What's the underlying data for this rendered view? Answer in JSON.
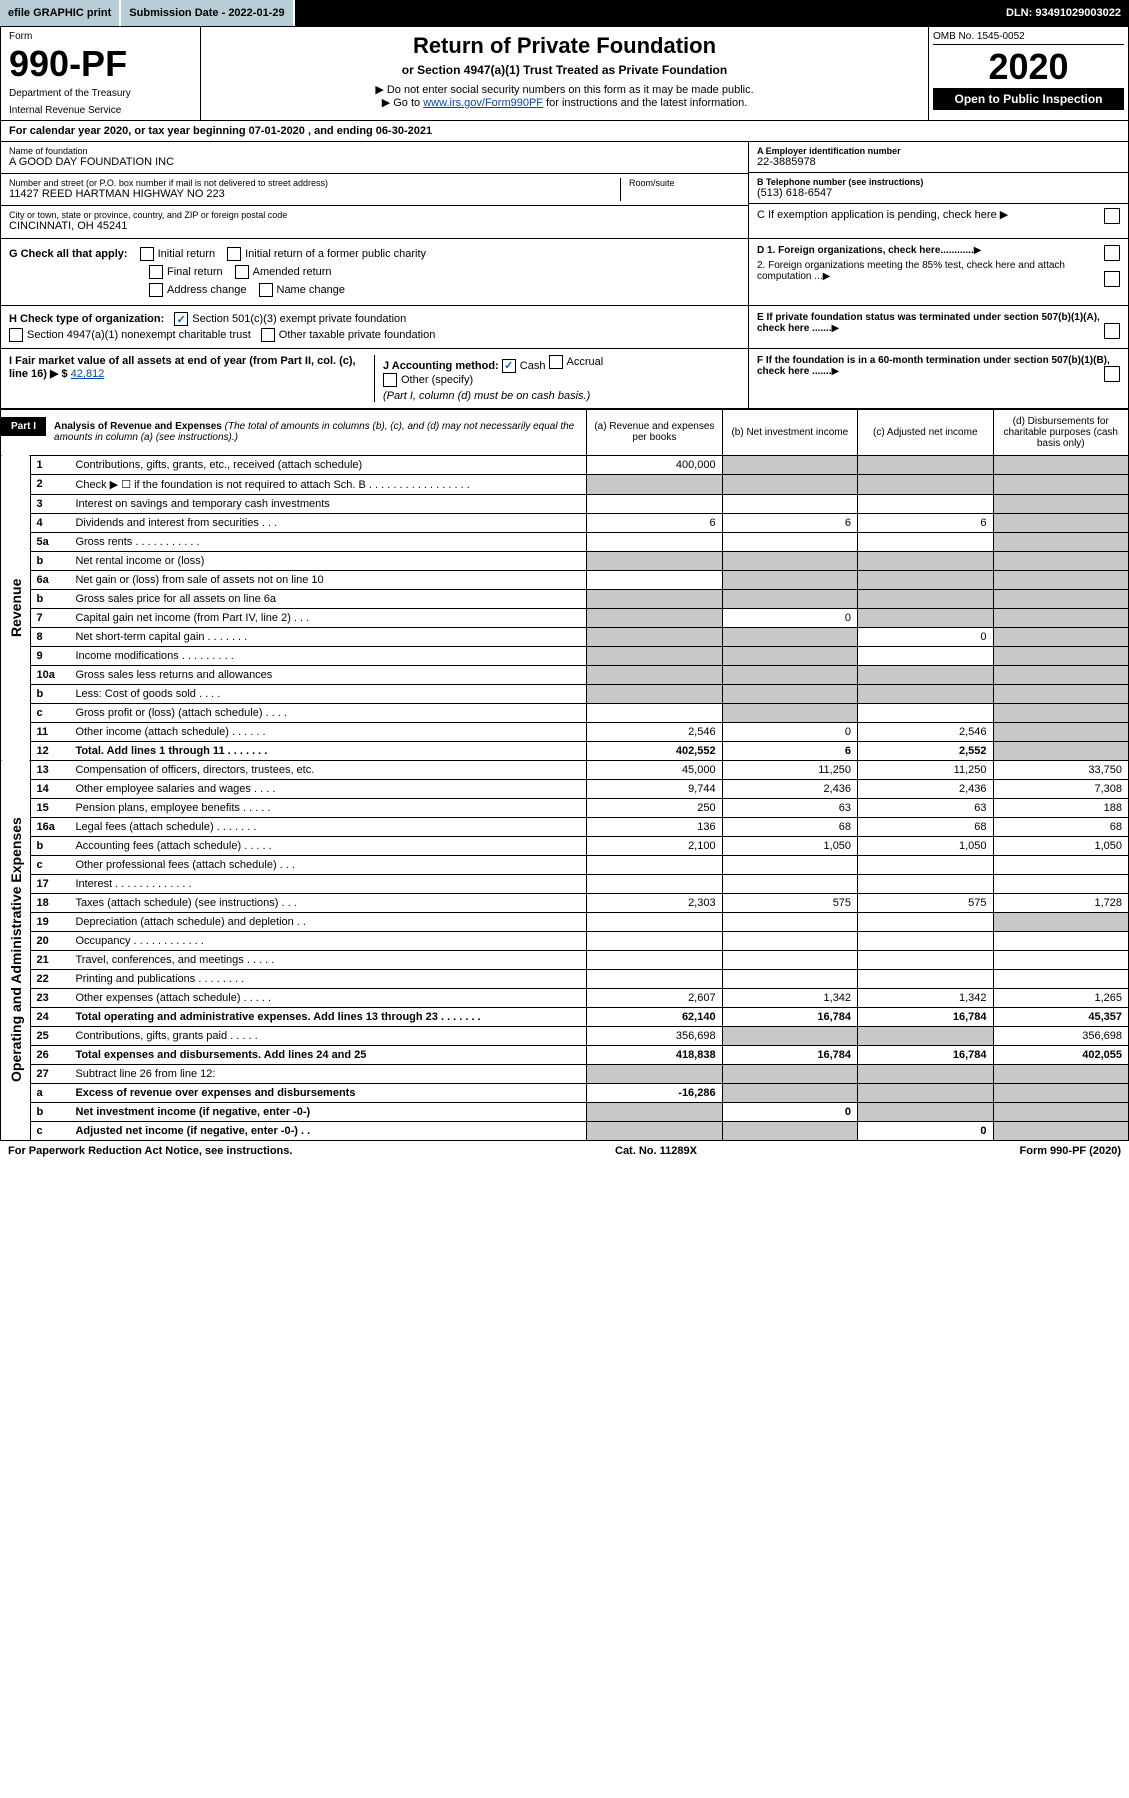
{
  "topbar": {
    "efile": "efile GRAPHIC print",
    "submission": "Submission Date - 2022-01-29",
    "dln": "DLN: 93491029003022"
  },
  "header": {
    "form_label": "Form",
    "form_num": "990-PF",
    "dept": "Department of the Treasury",
    "irs": "Internal Revenue Service",
    "title": "Return of Private Foundation",
    "subtitle": "or Section 4947(a)(1) Trust Treated as Private Foundation",
    "note1": "▶ Do not enter social security numbers on this form as it may be made public.",
    "note2_pre": "▶ Go to ",
    "note2_link": "www.irs.gov/Form990PF",
    "note2_post": " for instructions and the latest information.",
    "omb": "OMB No. 1545-0052",
    "year": "2020",
    "inspection": "Open to Public Inspection"
  },
  "taxyear": "For calendar year 2020, or tax year beginning 07-01-2020                                , and ending 06-30-2021",
  "org": {
    "name_label": "Name of foundation",
    "name": "A GOOD DAY FOUNDATION INC",
    "addr_label": "Number and street (or P.O. box number if mail is not delivered to street address)",
    "addr": "11427 REED HARTMAN HIGHWAY NO 223",
    "room_label": "Room/suite",
    "city_label": "City or town, state or province, country, and ZIP or foreign postal code",
    "city": "CINCINNATI, OH  45241",
    "ein_label": "A Employer identification number",
    "ein": "22-3885978",
    "phone_label": "B Telephone number (see instructions)",
    "phone": "(513) 618-6547",
    "c_label": "C If exemption application is pending, check here"
  },
  "checks": {
    "g_label": "G Check all that apply:",
    "g_items": [
      "Initial return",
      "Initial return of a former public charity",
      "Final return",
      "Amended return",
      "Address change",
      "Name change"
    ],
    "h_label": "H Check type of organization:",
    "h1": "Section 501(c)(3) exempt private foundation",
    "h2": "Section 4947(a)(1) nonexempt charitable trust",
    "h3": "Other taxable private foundation",
    "i_label": "I Fair market value of all assets at end of year (from Part II, col. (c), line 16) ▶ $",
    "i_val": "42,812",
    "j_label": "J Accounting method:",
    "j_cash": "Cash",
    "j_accrual": "Accrual",
    "j_other": "Other (specify)",
    "j_note": "(Part I, column (d) must be on cash basis.)",
    "d1": "D 1. Foreign organizations, check here............",
    "d2": "2. Foreign organizations meeting the 85% test, check here and attach computation ...",
    "e": "E If private foundation status was terminated under section 507(b)(1)(A), check here .......",
    "f": "F If the foundation is in a 60-month termination under section 507(b)(1)(B), check here ......."
  },
  "part1": {
    "label": "Part I",
    "title": "Analysis of Revenue and Expenses",
    "subtitle": "(The total of amounts in columns (b), (c), and (d) may not necessarily equal the amounts in column (a) (see instructions).)",
    "col_a": "(a) Revenue and expenses per books",
    "col_b": "(b) Net investment income",
    "col_c": "(c) Adjusted net income",
    "col_d": "(d) Disbursements for charitable purposes (cash basis only)"
  },
  "revenue_label": "Revenue",
  "expense_label": "Operating and Administrative Expenses",
  "rows": [
    {
      "num": "1",
      "desc": "Contributions, gifts, grants, etc., received (attach schedule)",
      "a": "400,000",
      "b": "",
      "c": "",
      "d": "",
      "shade_b": true,
      "shade_c": true,
      "shade_d": true
    },
    {
      "num": "2",
      "desc": "Check ▶ ☐ if the foundation is not required to attach Sch. B  . . . . . . . . . . . . . . . . .",
      "a": "",
      "b": "",
      "c": "",
      "d": "",
      "shade_a": true,
      "shade_b": true,
      "shade_c": true,
      "shade_d": true
    },
    {
      "num": "3",
      "desc": "Interest on savings and temporary cash investments",
      "a": "",
      "b": "",
      "c": "",
      "d": "",
      "shade_d": true
    },
    {
      "num": "4",
      "desc": "Dividends and interest from securities   .  .  .",
      "a": "6",
      "b": "6",
      "c": "6",
      "d": "",
      "shade_d": true
    },
    {
      "num": "5a",
      "desc": "Gross rents   .  .  .  .  .  .  .  .  .  .  .",
      "a": "",
      "b": "",
      "c": "",
      "d": "",
      "shade_d": true
    },
    {
      "num": "b",
      "desc": "Net rental income or (loss)",
      "a": "",
      "b": "",
      "c": "",
      "d": "",
      "shade_a": true,
      "shade_b": true,
      "shade_c": true,
      "shade_d": true
    },
    {
      "num": "6a",
      "desc": "Net gain or (loss) from sale of assets not on line 10",
      "a": "",
      "b": "",
      "c": "",
      "d": "",
      "shade_b": true,
      "shade_c": true,
      "shade_d": true
    },
    {
      "num": "b",
      "desc": "Gross sales price for all assets on line 6a",
      "a": "",
      "b": "",
      "c": "",
      "d": "",
      "shade_a": true,
      "shade_b": true,
      "shade_c": true,
      "shade_d": true
    },
    {
      "num": "7",
      "desc": "Capital gain net income (from Part IV, line 2)  .  .  .",
      "a": "",
      "b": "0",
      "c": "",
      "d": "",
      "shade_a": true,
      "shade_c": true,
      "shade_d": true
    },
    {
      "num": "8",
      "desc": "Net short-term capital gain  .  .  .  .  .  .  .",
      "a": "",
      "b": "",
      "c": "0",
      "d": "",
      "shade_a": true,
      "shade_b": true,
      "shade_d": true
    },
    {
      "num": "9",
      "desc": "Income modifications  .  .  .  .  .  .  .  .  .",
      "a": "",
      "b": "",
      "c": "",
      "d": "",
      "shade_a": true,
      "shade_b": true,
      "shade_d": true
    },
    {
      "num": "10a",
      "desc": "Gross sales less returns and allowances",
      "a": "",
      "b": "",
      "c": "",
      "d": "",
      "shade_a": true,
      "shade_b": true,
      "shade_c": true,
      "shade_d": true
    },
    {
      "num": "b",
      "desc": "Less: Cost of goods sold   .  .  .  .",
      "a": "",
      "b": "",
      "c": "",
      "d": "",
      "shade_a": true,
      "shade_b": true,
      "shade_c": true,
      "shade_d": true
    },
    {
      "num": "c",
      "desc": "Gross profit or (loss) (attach schedule)   .  .  .  .",
      "a": "",
      "b": "",
      "c": "",
      "d": "",
      "shade_b": true,
      "shade_d": true
    },
    {
      "num": "11",
      "desc": "Other income (attach schedule)   .  .  .  .  .  .",
      "a": "2,546",
      "b": "0",
      "c": "2,546",
      "d": "",
      "shade_d": true
    },
    {
      "num": "12",
      "desc": "Total. Add lines 1 through 11  .  .  .  .  .  .  .",
      "a": "402,552",
      "b": "6",
      "c": "2,552",
      "d": "",
      "shade_d": true,
      "bold": true
    }
  ],
  "exp_rows": [
    {
      "num": "13",
      "desc": "Compensation of officers, directors, trustees, etc.",
      "a": "45,000",
      "b": "11,250",
      "c": "11,250",
      "d": "33,750"
    },
    {
      "num": "14",
      "desc": "Other employee salaries and wages   .  .  .  .",
      "a": "9,744",
      "b": "2,436",
      "c": "2,436",
      "d": "7,308"
    },
    {
      "num": "15",
      "desc": "Pension plans, employee benefits  .  .  .  .  .",
      "a": "250",
      "b": "63",
      "c": "63",
      "d": "188"
    },
    {
      "num": "16a",
      "desc": "Legal fees (attach schedule)  .  .  .  .  .  .  .",
      "a": "136",
      "b": "68",
      "c": "68",
      "d": "68"
    },
    {
      "num": "b",
      "desc": "Accounting fees (attach schedule)  .  .  .  .  .",
      "a": "2,100",
      "b": "1,050",
      "c": "1,050",
      "d": "1,050"
    },
    {
      "num": "c",
      "desc": "Other professional fees (attach schedule)   .  .  .",
      "a": "",
      "b": "",
      "c": "",
      "d": ""
    },
    {
      "num": "17",
      "desc": "Interest  .  .  .  .  .  .  .  .  .  .  .  .  .",
      "a": "",
      "b": "",
      "c": "",
      "d": ""
    },
    {
      "num": "18",
      "desc": "Taxes (attach schedule) (see instructions)   .  .  .",
      "a": "2,303",
      "b": "575",
      "c": "575",
      "d": "1,728"
    },
    {
      "num": "19",
      "desc": "Depreciation (attach schedule) and depletion   .  .",
      "a": "",
      "b": "",
      "c": "",
      "d": "",
      "shade_d": true
    },
    {
      "num": "20",
      "desc": "Occupancy  .  .  .  .  .  .  .  .  .  .  .  .",
      "a": "",
      "b": "",
      "c": "",
      "d": ""
    },
    {
      "num": "21",
      "desc": "Travel, conferences, and meetings  .  .  .  .  .",
      "a": "",
      "b": "",
      "c": "",
      "d": ""
    },
    {
      "num": "22",
      "desc": "Printing and publications  .  .  .  .  .  .  .  .",
      "a": "",
      "b": "",
      "c": "",
      "d": ""
    },
    {
      "num": "23",
      "desc": "Other expenses (attach schedule)  .  .  .  .  .",
      "a": "2,607",
      "b": "1,342",
      "c": "1,342",
      "d": "1,265"
    },
    {
      "num": "24",
      "desc": "Total operating and administrative expenses. Add lines 13 through 23  .  .  .  .  .  .  .",
      "a": "62,140",
      "b": "16,784",
      "c": "16,784",
      "d": "45,357",
      "bold": true
    },
    {
      "num": "25",
      "desc": "Contributions, gifts, grants paid   .  .  .  .  .",
      "a": "356,698",
      "b": "",
      "c": "",
      "d": "356,698",
      "shade_b": true,
      "shade_c": true
    },
    {
      "num": "26",
      "desc": "Total expenses and disbursements. Add lines 24 and 25",
      "a": "418,838",
      "b": "16,784",
      "c": "16,784",
      "d": "402,055",
      "bold": true
    },
    {
      "num": "27",
      "desc": "Subtract line 26 from line 12:",
      "a": "",
      "b": "",
      "c": "",
      "d": "",
      "shade_a": true,
      "shade_b": true,
      "shade_c": true,
      "shade_d": true
    },
    {
      "num": "a",
      "desc": "Excess of revenue over expenses and disbursements",
      "a": "-16,286",
      "b": "",
      "c": "",
      "d": "",
      "bold": true,
      "shade_b": true,
      "shade_c": true,
      "shade_d": true
    },
    {
      "num": "b",
      "desc": "Net investment income (if negative, enter -0-)",
      "a": "",
      "b": "0",
      "c": "",
      "d": "",
      "bold": true,
      "shade_a": true,
      "shade_c": true,
      "shade_d": true
    },
    {
      "num": "c",
      "desc": "Adjusted net income (if negative, enter -0-)   .  .",
      "a": "",
      "b": "",
      "c": "0",
      "d": "",
      "bold": true,
      "shade_a": true,
      "shade_b": true,
      "shade_d": true
    }
  ],
  "footer": {
    "left": "For Paperwork Reduction Act Notice, see instructions.",
    "center": "Cat. No. 11289X",
    "right": "Form 990-PF (2020)"
  }
}
